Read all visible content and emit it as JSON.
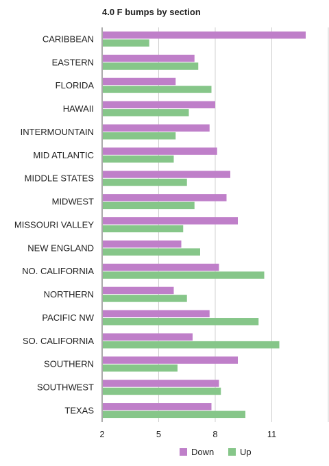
{
  "chart_data": {
    "type": "bar",
    "orientation": "horizontal",
    "title": "4.0 F bumps by section",
    "categories": [
      "CARIBBEAN",
      "EASTERN",
      "FLORIDA",
      "HAWAII",
      "INTERMOUNTAIN",
      "MID ATLANTIC",
      "MIDDLE STATES",
      "MIDWEST",
      "MISSOURI VALLEY",
      "NEW ENGLAND",
      "NO. CALIFORNIA",
      "NORTHERN",
      "PACIFIC NW",
      "SO. CALIFORNIA",
      "SOUTHERN",
      "SOUTHWEST",
      "TEXAS"
    ],
    "series": [
      {
        "name": "Down",
        "color": "#bf7fc9",
        "values": [
          12.8,
          6.9,
          5.9,
          8.0,
          7.7,
          8.1,
          8.8,
          8.6,
          9.2,
          6.2,
          8.2,
          5.8,
          7.7,
          6.8,
          9.2,
          8.2,
          7.8
        ]
      },
      {
        "name": "Up",
        "color": "#86c689",
        "values": [
          4.5,
          7.1,
          7.8,
          6.6,
          5.9,
          5.8,
          6.5,
          6.9,
          6.3,
          7.2,
          10.6,
          6.5,
          10.3,
          11.4,
          6.0,
          8.3,
          9.6
        ]
      }
    ],
    "xticks": [
      2,
      5,
      8,
      11
    ],
    "xlim": [
      2,
      14
    ],
    "grid": true,
    "legend": "bottom"
  }
}
